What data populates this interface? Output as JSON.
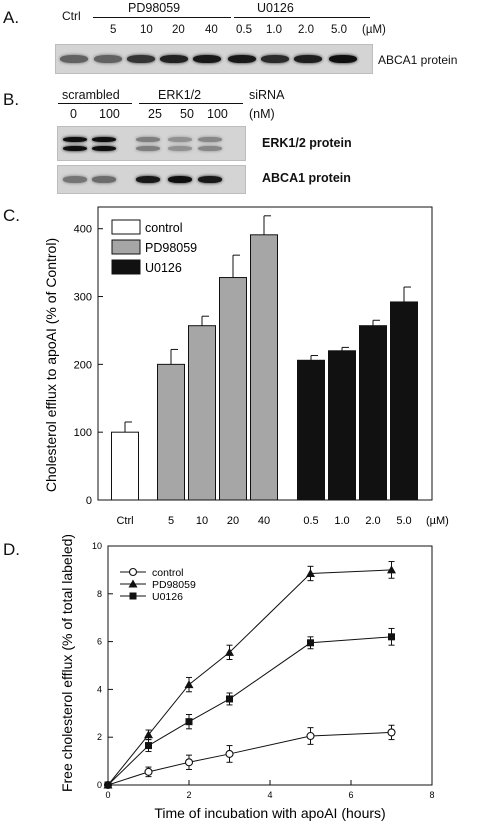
{
  "panelA": {
    "letter": "A.",
    "ctrl_label": "Ctrl",
    "group1": "PD98059",
    "group2": "U0126",
    "conc_labels": [
      "5",
      "10",
      "20",
      "40",
      "0.5",
      "1.0",
      "2.0",
      "5.0"
    ],
    "unit": "(µM)",
    "blot_label": "ABCA1 protein",
    "band_intensity": [
      0.55,
      0.55,
      0.8,
      0.9,
      0.95,
      0.95,
      0.85,
      0.92,
      1.0
    ]
  },
  "panelB": {
    "letter": "B.",
    "group1": "scrambled",
    "group2": "ERK1/2",
    "sirna": "siRNA",
    "conc_labels": [
      "0",
      "100",
      "25",
      "50",
      "100"
    ],
    "unit": "(nM)",
    "blot1_label": "ERK1/2 protein",
    "blot2_label": "ABCA1 protein",
    "erk_intensity": [
      1.0,
      1.0,
      0.4,
      0.3,
      0.35
    ],
    "abca1_intensity": [
      0.45,
      0.5,
      0.95,
      1.0,
      0.95
    ]
  },
  "panelC": {
    "letter": "C.",
    "chart_data": {
      "type": "bar",
      "ylabel": "Cholesterol efflux to apoAI (% of Control)",
      "xlabel": "",
      "ylim": [
        0,
        400
      ],
      "yticks": [
        "0",
        "100",
        "200",
        "300",
        "400"
      ],
      "categories": [
        "Ctrl",
        "5",
        "10",
        "20",
        "40",
        "0.5",
        "1.0",
        "2.0",
        "5.0"
      ],
      "unit": "(µM)",
      "series": [
        {
          "name": "control",
          "color": "#ffffff",
          "values": [
            100,
            null,
            null,
            null,
            null,
            null,
            null,
            null,
            null
          ],
          "errors": [
            15,
            null,
            null,
            null,
            null,
            null,
            null,
            null,
            null
          ]
        },
        {
          "name": "PD98059",
          "color": "#a6a6a6",
          "values": [
            null,
            200,
            257,
            328,
            391,
            null,
            null,
            null,
            null
          ],
          "errors": [
            null,
            22,
            14,
            33,
            28,
            null,
            null,
            null,
            null
          ]
        },
        {
          "name": "U0126",
          "color": "#111111",
          "values": [
            null,
            null,
            null,
            null,
            null,
            206,
            220,
            257,
            292
          ],
          "errors": [
            null,
            null,
            null,
            null,
            null,
            7,
            5,
            8,
            22
          ]
        }
      ],
      "legend": "top-left"
    }
  },
  "panelD": {
    "letter": "D.",
    "chart_data": {
      "type": "line",
      "xlabel": "Time of incubation with apoAI (hours)",
      "ylabel": "Free cholesterol efflux (% of total labeled)",
      "xlim": [
        0,
        8
      ],
      "ylim": [
        0,
        10
      ],
      "xticks": [
        "0",
        "2",
        "4",
        "6",
        "8"
      ],
      "yticks": [
        "0",
        "2",
        "4",
        "6",
        "8",
        "10"
      ],
      "x": [
        0,
        1,
        2,
        3,
        5,
        7
      ],
      "series": [
        {
          "name": "control",
          "marker": "open-circle",
          "values": [
            0,
            0.55,
            0.95,
            1.3,
            2.05,
            2.2
          ],
          "errors": [
            0,
            0.2,
            0.3,
            0.35,
            0.35,
            0.3
          ]
        },
        {
          "name": "PD98059",
          "marker": "triangle",
          "values": [
            0,
            2.1,
            4.2,
            5.55,
            8.85,
            9.0
          ],
          "errors": [
            0,
            0.2,
            0.3,
            0.3,
            0.3,
            0.35
          ]
        },
        {
          "name": "U0126",
          "marker": "square",
          "values": [
            0,
            1.65,
            2.65,
            3.6,
            5.95,
            6.2
          ],
          "errors": [
            0,
            0.25,
            0.3,
            0.25,
            0.25,
            0.35
          ]
        }
      ],
      "legend": "top-left"
    }
  }
}
